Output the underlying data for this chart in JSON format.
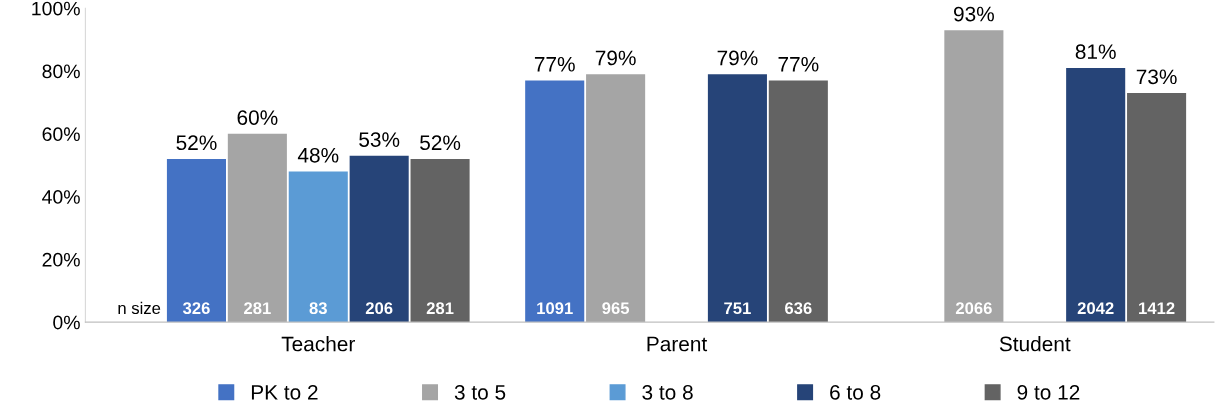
{
  "chart_data": {
    "type": "bar",
    "categories": [
      "Teacher",
      "Parent",
      "Student"
    ],
    "series": [
      {
        "name": "PK to 2",
        "color": "#4472c4",
        "values": [
          52,
          77,
          null
        ],
        "value_labels": [
          "52%",
          "77%",
          null
        ]
      },
      {
        "name": "3 to 5",
        "color": "#a5a5a5",
        "values": [
          60,
          79,
          93
        ],
        "value_labels": [
          "60%",
          "79%",
          "93%"
        ]
      },
      {
        "name": "3 to 8",
        "color": "#5b9bd5",
        "values": [
          48,
          null,
          null
        ],
        "value_labels": [
          "48%",
          null,
          null
        ]
      },
      {
        "name": "6 to 8",
        "color": "#264478",
        "values": [
          53,
          79,
          81
        ],
        "value_labels": [
          "53%",
          "79%",
          "81%"
        ]
      },
      {
        "name": "9 to 12",
        "color": "#636363",
        "values": [
          52,
          77,
          73
        ],
        "value_labels": [
          "52%",
          "77%",
          "73%"
        ]
      }
    ],
    "ylim": [
      0,
      100
    ],
    "yticks": [
      {
        "value": 0,
        "label": "0%"
      },
      {
        "value": 20,
        "label": "20%"
      },
      {
        "value": 40,
        "label": "40%"
      },
      {
        "value": 60,
        "label": "60%"
      },
      {
        "value": 80,
        "label": "80%"
      },
      {
        "value": 100,
        "label": "100%"
      }
    ],
    "annotations": [
      "n size",
      "326",
      "281",
      "83",
      "206",
      "281",
      "1091",
      "965",
      "751",
      "636",
      "2066",
      "2042",
      "1412"
    ],
    "legend": "bottom",
    "grid": false
  }
}
